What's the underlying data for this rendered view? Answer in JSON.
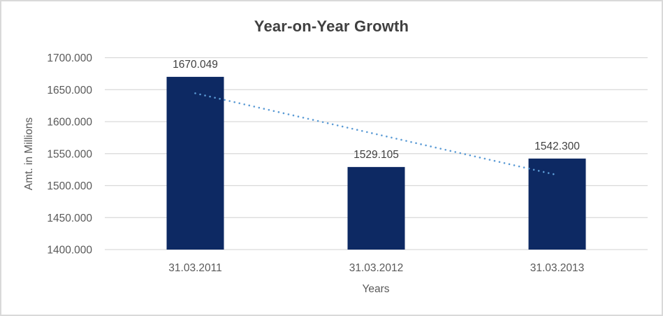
{
  "chart_data": {
    "type": "bar",
    "title": "Year-on-Year Growth",
    "xlabel": "Years",
    "ylabel": "Amt. in Millions",
    "categories": [
      "31.03.2011",
      "31.03.2012",
      "31.03.2013"
    ],
    "values": [
      1670.049,
      1529.105,
      1542.3
    ],
    "data_labels": [
      "1670.049",
      "1529.105",
      "1542.300"
    ],
    "ylim": [
      1400,
      1700
    ],
    "ytick_step": 50,
    "ytick_labels": [
      "1400.000",
      "1450.000",
      "1500.000",
      "1550.000",
      "1600.000",
      "1650.000",
      "1700.000"
    ],
    "grid": true,
    "legend": "none",
    "trendline": {
      "type": "linear",
      "style": "dotted"
    },
    "colors": {
      "bar": "#0d2963",
      "trendline": "#5b9bd5",
      "gridline": "#d9d9d9",
      "frame_border": "#d9d9d9",
      "background": "#ffffff",
      "title_text": "#404040",
      "axis_text": "#595959",
      "data_label_text": "#404040"
    }
  }
}
